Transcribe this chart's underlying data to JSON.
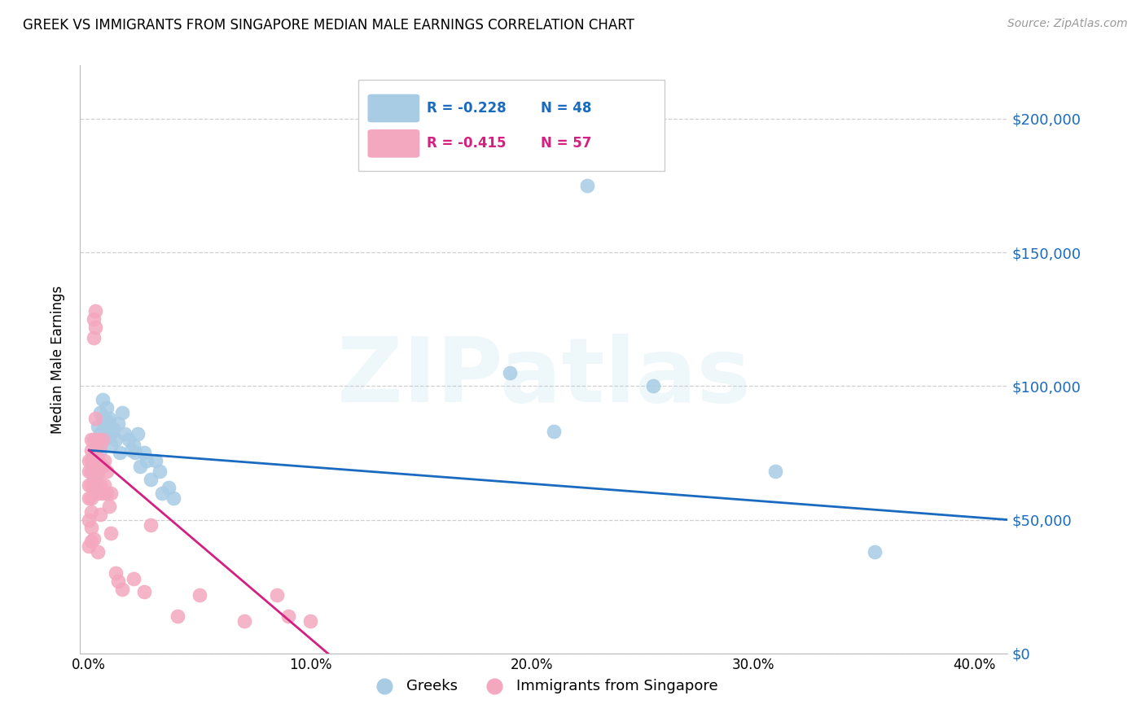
{
  "title": "GREEK VS IMMIGRANTS FROM SINGAPORE MEDIAN MALE EARNINGS CORRELATION CHART",
  "source": "Source: ZipAtlas.com",
  "ylabel": "Median Male Earnings",
  "xlabel_ticks": [
    "0.0%",
    "10.0%",
    "20.0%",
    "30.0%",
    "40.0%"
  ],
  "xlabel_values": [
    0.0,
    0.1,
    0.2,
    0.3,
    0.4
  ],
  "ylabel_ticks": [
    0,
    50000,
    100000,
    150000,
    200000
  ],
  "ylabel_labels": [
    "$0",
    "$50,000",
    "$100,000",
    "$150,000",
    "$200,000"
  ],
  "ylim": [
    0,
    220000
  ],
  "xlim": [
    -0.004,
    0.415
  ],
  "blue_color": "#a8cce4",
  "pink_color": "#f4a8c0",
  "blue_line_color": "#1a6bbf",
  "pink_line_color": "#d42080",
  "watermark": "ZIPatlas",
  "r1": "-0.228",
  "n1": "48",
  "r2": "-0.415",
  "n2": "57",
  "legend_label1": "Greeks",
  "legend_label2": "Immigrants from Singapore",
  "blue_x": [
    0.001,
    0.001,
    0.002,
    0.002,
    0.003,
    0.003,
    0.003,
    0.003,
    0.004,
    0.004,
    0.005,
    0.005,
    0.005,
    0.006,
    0.006,
    0.007,
    0.007,
    0.008,
    0.008,
    0.009,
    0.01,
    0.01,
    0.011,
    0.012,
    0.013,
    0.014,
    0.015,
    0.016,
    0.018,
    0.019,
    0.02,
    0.021,
    0.022,
    0.023,
    0.025,
    0.026,
    0.028,
    0.03,
    0.032,
    0.033,
    0.036,
    0.038,
    0.19,
    0.21,
    0.225,
    0.255,
    0.31,
    0.355
  ],
  "blue_y": [
    72000,
    68000,
    74000,
    65000,
    80000,
    75000,
    70000,
    65000,
    85000,
    78000,
    90000,
    82000,
    76000,
    95000,
    88000,
    85000,
    80000,
    92000,
    87000,
    88000,
    82000,
    78000,
    84000,
    80000,
    86000,
    75000,
    90000,
    82000,
    80000,
    76000,
    78000,
    75000,
    82000,
    70000,
    75000,
    72000,
    65000,
    72000,
    68000,
    60000,
    62000,
    58000,
    105000,
    83000,
    175000,
    100000,
    68000,
    38000
  ],
  "pink_x": [
    0.0,
    0.0,
    0.0,
    0.0,
    0.0,
    0.0,
    0.001,
    0.001,
    0.001,
    0.001,
    0.001,
    0.001,
    0.001,
    0.001,
    0.001,
    0.002,
    0.002,
    0.002,
    0.002,
    0.002,
    0.002,
    0.003,
    0.003,
    0.003,
    0.003,
    0.003,
    0.004,
    0.004,
    0.004,
    0.004,
    0.004,
    0.005,
    0.005,
    0.005,
    0.005,
    0.006,
    0.006,
    0.006,
    0.007,
    0.007,
    0.008,
    0.008,
    0.009,
    0.01,
    0.01,
    0.012,
    0.013,
    0.015,
    0.02,
    0.025,
    0.028,
    0.04,
    0.05,
    0.07,
    0.085,
    0.09,
    0.1
  ],
  "pink_y": [
    72000,
    68000,
    63000,
    58000,
    50000,
    40000,
    80000,
    76000,
    72000,
    68000,
    63000,
    58000,
    53000,
    47000,
    42000,
    125000,
    118000,
    80000,
    72000,
    63000,
    43000,
    128000,
    122000,
    88000,
    76000,
    68000,
    80000,
    73000,
    67000,
    60000,
    38000,
    78000,
    71000,
    63000,
    52000,
    80000,
    70000,
    60000,
    72000,
    63000,
    68000,
    60000,
    55000,
    60000,
    45000,
    30000,
    27000,
    24000,
    28000,
    23000,
    48000,
    14000,
    22000,
    12000,
    22000,
    14000,
    12000
  ],
  "background_color": "#ffffff",
  "grid_color": "#d0d0d0",
  "blue_line_start_x": 0.0,
  "blue_line_end_x": 0.415,
  "pink_line_start_x": 0.0,
  "pink_line_end_x": 0.115
}
